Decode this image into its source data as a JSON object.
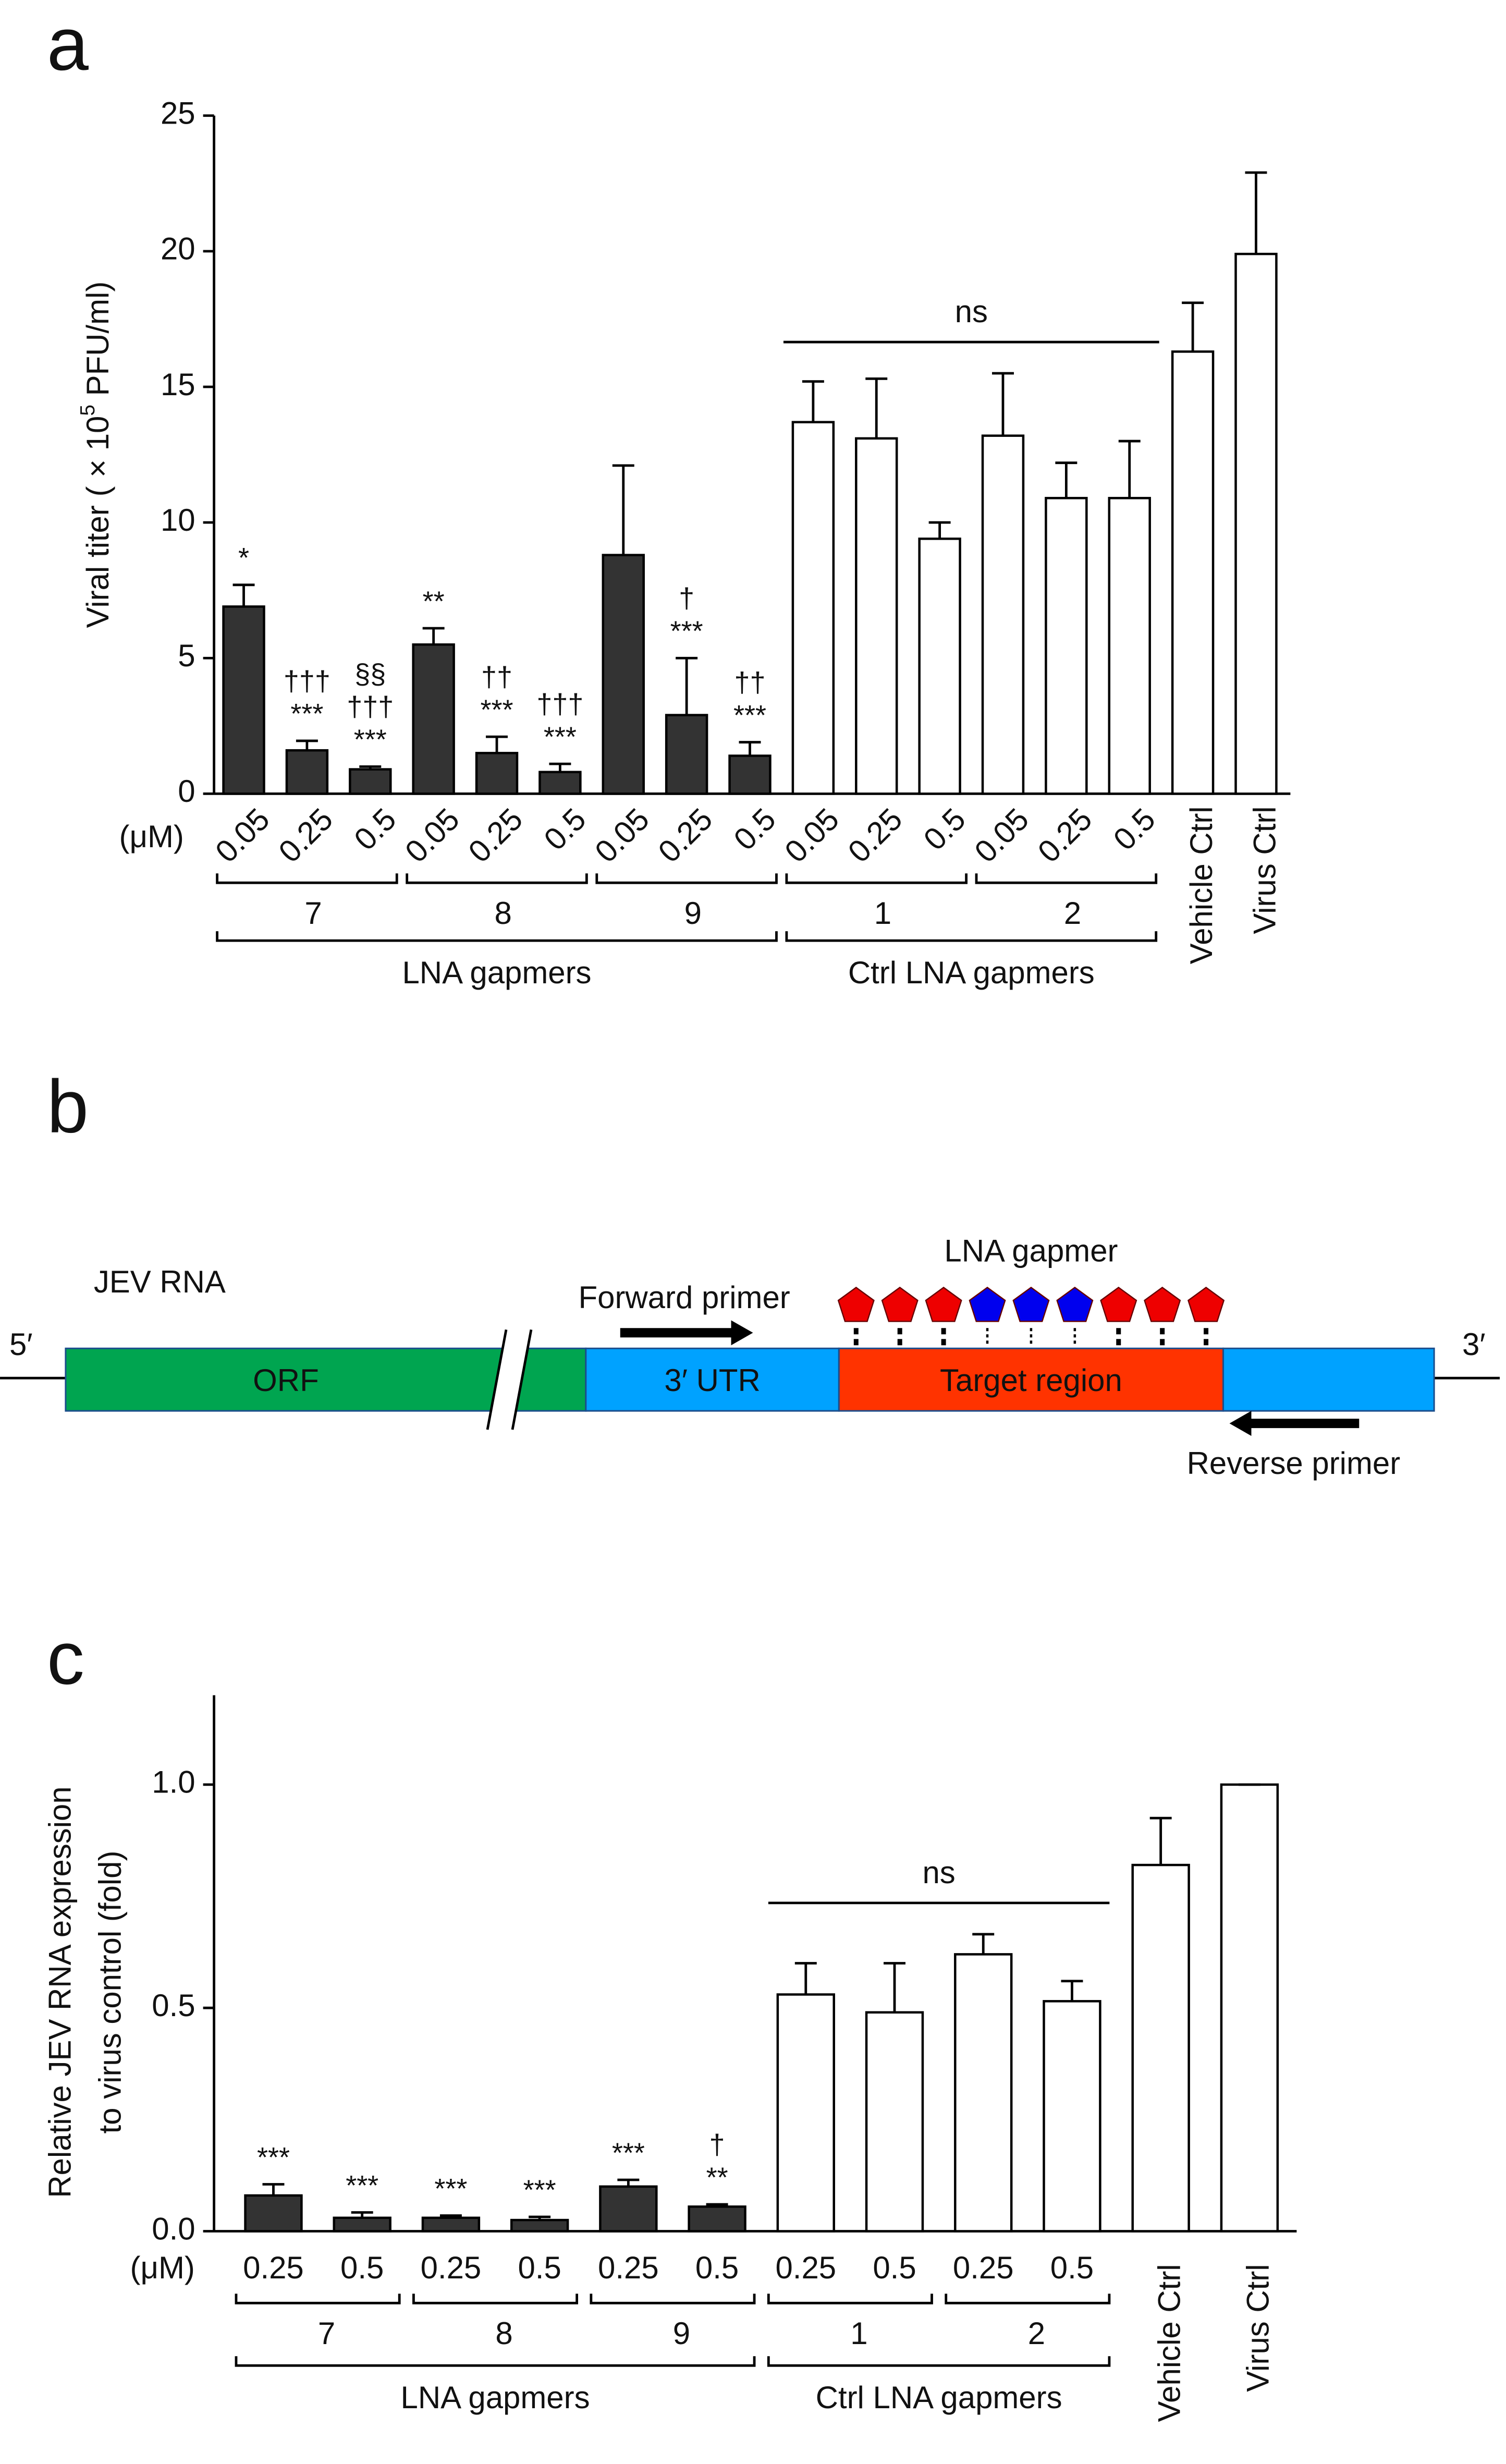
{
  "chart_data": [
    {
      "type": "bar",
      "panel": "a",
      "y_label": [
        "Viral titer ( × 10",
        "5",
        " PFU/ml)"
      ],
      "unit_label": "(μM)",
      "groups": [
        {
          "name": "LNA gapmers",
          "groups": [
            {
              "name": "7",
              "categories": [
                "0.05",
                "0.25",
                "0.5"
              ]
            },
            {
              "name": "8",
              "categories": [
                "0.05",
                "0.25",
                "0.5"
              ]
            },
            {
              "name": "9",
              "categories": [
                "0.05",
                "0.25",
                "0.5"
              ]
            }
          ]
        },
        {
          "name": "Ctrl LNA gapmers",
          "annotation": "ns",
          "groups": [
            {
              "name": "1",
              "categories": [
                "0.05",
                "0.25",
                "0.5"
              ]
            },
            {
              "name": "2",
              "categories": [
                "0.05",
                "0.25",
                "0.5"
              ]
            }
          ]
        },
        {
          "categories": [
            "Vehicle Ctrl"
          ]
        },
        {
          "categories": [
            "Virus Ctrl"
          ]
        }
      ],
      "values": [
        6.9,
        1.6,
        0.9,
        5.5,
        1.5,
        0.8,
        8.8,
        2.9,
        1.4,
        13.7,
        13.1,
        9.4,
        13.2,
        10.9,
        10.9,
        16.3,
        19.9
      ],
      "errors": [
        0.8,
        0.35,
        0.1,
        0.6,
        0.6,
        0.3,
        3.3,
        2.1,
        0.5,
        1.5,
        2.2,
        0.6,
        2.3,
        1.3,
        2.1,
        1.8,
        3.0
      ],
      "colors": [
        "#333333",
        "#333333",
        "#333333",
        "#333333",
        "#333333",
        "#333333",
        "#333333",
        "#333333",
        "#333333",
        "#ffffff",
        "#ffffff",
        "#ffffff",
        "#ffffff",
        "#ffffff",
        "#ffffff",
        "#ffffff",
        "#ffffff"
      ],
      "significance": [
        [
          "*"
        ],
        [
          "†††",
          "***"
        ],
        [
          "§§",
          "†††",
          "***"
        ],
        [
          "**"
        ],
        [
          "††",
          "***"
        ],
        [
          "†††",
          "***"
        ],
        [],
        [
          "†",
          "***"
        ],
        [
          "††",
          "***"
        ],
        [],
        [],
        [],
        [],
        [],
        [],
        [],
        []
      ],
      "ylim": [
        0,
        25
      ],
      "yticks": [
        0,
        5,
        10,
        15,
        20,
        25
      ]
    },
    {
      "type": "bar",
      "panel": "c",
      "y_label": [
        "Relative JEV RNA expression",
        "to virus control (fold)"
      ],
      "unit_label": "(μM)",
      "groups": [
        {
          "name": "LNA gapmers",
          "groups": [
            {
              "name": "7",
              "categories": [
                "0.25",
                "0.5"
              ]
            },
            {
              "name": "8",
              "categories": [
                "0.25",
                "0.5"
              ]
            },
            {
              "name": "9",
              "categories": [
                "0.25",
                "0.5"
              ]
            }
          ]
        },
        {
          "name": "Ctrl LNA gapmers",
          "annotation": "ns",
          "groups": [
            {
              "name": "1",
              "categories": [
                "0.25",
                "0.5"
              ]
            },
            {
              "name": "2",
              "categories": [
                "0.25",
                "0.5"
              ]
            }
          ]
        },
        {
          "categories": [
            "Vehicle Ctrl"
          ]
        },
        {
          "categories": [
            "Virus Ctrl"
          ]
        }
      ],
      "values": [
        0.08,
        0.03,
        0.03,
        0.025,
        0.1,
        0.055,
        0.53,
        0.49,
        0.62,
        0.515,
        0.82,
        1.0
      ],
      "errors": [
        0.025,
        0.012,
        0.005,
        0.007,
        0.015,
        0.005,
        0.07,
        0.11,
        0.045,
        0.045,
        0.105,
        0
      ],
      "colors": [
        "#333333",
        "#333333",
        "#333333",
        "#333333",
        "#333333",
        "#333333",
        "#ffffff",
        "#ffffff",
        "#ffffff",
        "#ffffff",
        "#ffffff",
        "#ffffff"
      ],
      "significance": [
        [
          "***"
        ],
        [
          "***"
        ],
        [
          "***"
        ],
        [
          "***"
        ],
        [
          "***"
        ],
        [
          "†",
          "**"
        ],
        [],
        [],
        [],
        [],
        [],
        []
      ],
      "ylim": [
        0,
        1.2
      ],
      "yticks": [
        {
          "value": 0,
          "label": "0.0"
        },
        0.5,
        {
          "value": 1,
          "label": "1.0"
        }
      ]
    }
  ],
  "diagram": {
    "panel": "b",
    "title": "JEV RNA",
    "five_prime": "5′",
    "three_prime": "3′",
    "segments": [
      {
        "label": "ORF",
        "color": "#00a550"
      },
      {
        "label": "3′ UTR",
        "color": "#00a2ff"
      },
      {
        "label": "Target region",
        "color": "#ff3300"
      },
      {
        "color": "#00a2ff"
      }
    ],
    "forward_primer": "Forward primer",
    "reverse_primer": "Reverse primer",
    "gapmer": {
      "label": "LNA gapmer",
      "units": [
        "#ee0000",
        "#ee0000",
        "#ee0000",
        "#0000ee",
        "#0000ee",
        "#0000ee",
        "#ee0000",
        "#ee0000",
        "#ee0000"
      ]
    }
  }
}
